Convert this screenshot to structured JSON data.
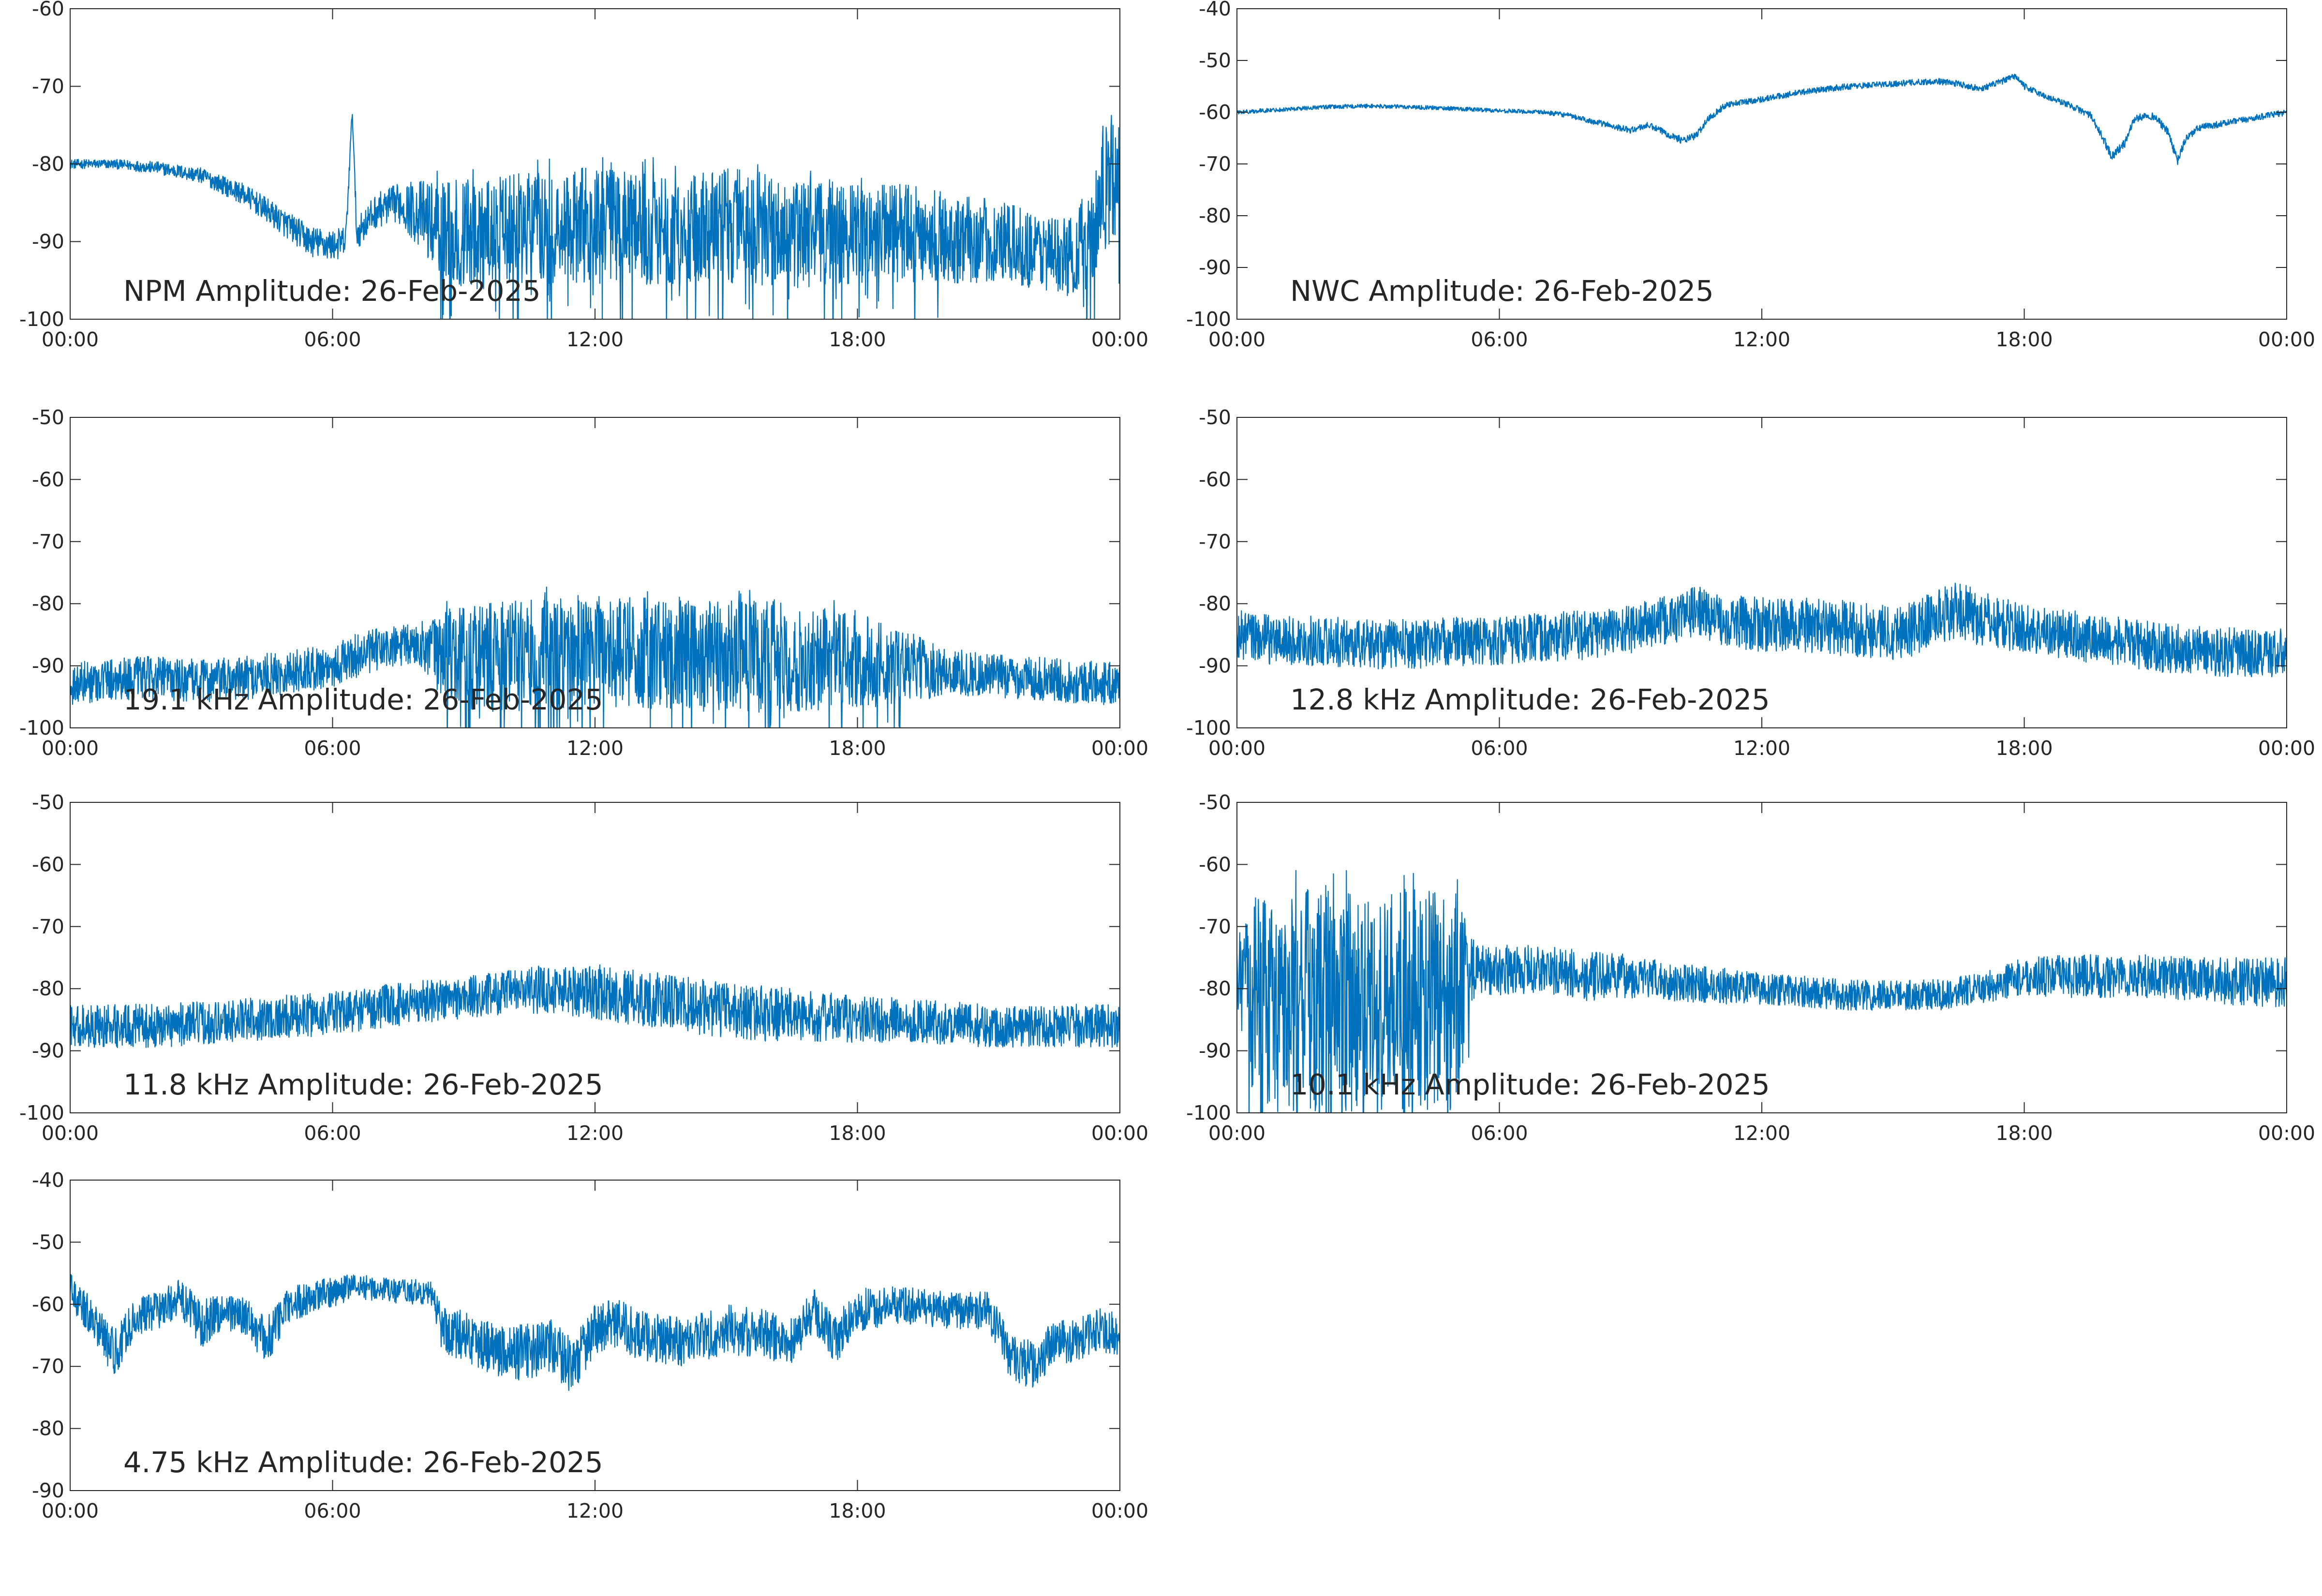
{
  "figure": {
    "background": "#ffffff",
    "line_color": "#0072bd",
    "axis_color": "#262626"
  },
  "chart_data": [
    {
      "type": "line",
      "title": "NPM Amplitude: 26-Feb-2025",
      "xlabel": "",
      "ylabel": "",
      "x_ticks": [
        "00:00",
        "06:00",
        "12:00",
        "18:00",
        "00:00"
      ],
      "x_range_hours": [
        0,
        24
      ],
      "ylim": [
        -100,
        -60
      ],
      "y_ticks": [
        -100,
        -90,
        -80,
        -70,
        -60
      ],
      "grid": false,
      "series": [
        {
          "x": [
            0,
            1,
            2,
            3,
            4,
            5,
            5.5,
            6,
            6.3,
            6.45,
            6.55,
            7,
            7.5,
            8,
            8.5,
            9,
            10,
            11,
            12,
            13,
            14,
            15,
            16,
            17,
            18,
            19,
            20,
            21,
            22,
            22.8,
            23.3,
            23.6,
            24
          ],
          "y": [
            -80,
            -80,
            -80.5,
            -81.5,
            -84,
            -88,
            -90,
            -90.5,
            -90,
            -73,
            -89,
            -86,
            -85,
            -86.5,
            -88.5,
            -89,
            -89,
            -88,
            -88,
            -88,
            -88,
            -88,
            -88.5,
            -89,
            -89,
            -89,
            -89.5,
            -90,
            -91,
            -92,
            -90,
            -84,
            -81
          ],
          "noise_band": [
            0.6,
            0.6,
            0.8,
            1.0,
            1.4,
            1.8,
            2.0,
            2.0,
            2.0,
            0.5,
            2.0,
            2.2,
            2.5,
            4.5,
            6.5,
            7.0,
            7.5,
            7.5,
            7.5,
            7.5,
            7.5,
            7.5,
            7.5,
            7.0,
            6.5,
            6.5,
            6.0,
            5.5,
            5.0,
            5.0,
            7.0,
            8.0,
            7.0
          ]
        }
      ]
    },
    {
      "type": "line",
      "title": "NWC Amplitude: 26-Feb-2025",
      "xlabel": "",
      "ylabel": "",
      "x_ticks": [
        "00:00",
        "06:00",
        "12:00",
        "18:00",
        "00:00"
      ],
      "x_range_hours": [
        0,
        24
      ],
      "ylim": [
        -100,
        -40
      ],
      "y_ticks": [
        -100,
        -90,
        -80,
        -70,
        -60,
        -50,
        -40
      ],
      "grid": false,
      "series": [
        {
          "x": [
            0,
            1,
            2,
            3,
            4,
            5,
            6,
            7,
            7.5,
            8,
            8.5,
            9,
            9.4,
            9.8,
            10.2,
            10.5,
            10.8,
            11.2,
            12,
            13,
            14,
            15,
            16,
            16.5,
            17,
            17.5,
            17.8,
            18,
            18.5,
            19,
            19.5,
            19.8,
            20,
            20.3,
            20.5,
            20.8,
            21,
            21.3,
            21.5,
            21.7,
            22,
            23,
            24
          ],
          "y": [
            -60,
            -59.5,
            -59,
            -58.8,
            -59,
            -59.3,
            -59.7,
            -60,
            -60.5,
            -61.5,
            -62.5,
            -63.5,
            -62.5,
            -64,
            -65.5,
            -64.5,
            -61,
            -58.5,
            -57.5,
            -56,
            -55,
            -54.5,
            -54,
            -54.5,
            -55.5,
            -54,
            -53,
            -55,
            -57,
            -58.5,
            -60.5,
            -65,
            -68.5,
            -66,
            -61.5,
            -60.5,
            -61,
            -64,
            -69.5,
            -65,
            -63,
            -61.5,
            -60
          ],
          "noise_band": [
            0.4,
            0.4,
            0.4,
            0.4,
            0.4,
            0.4,
            0.4,
            0.4,
            0.5,
            0.5,
            0.6,
            0.6,
            0.6,
            0.7,
            0.7,
            0.7,
            0.7,
            0.6,
            0.6,
            0.6,
            0.6,
            0.6,
            0.6,
            0.6,
            0.6,
            0.6,
            0.6,
            0.6,
            0.6,
            0.6,
            0.7,
            0.8,
            0.9,
            0.8,
            0.7,
            0.7,
            0.7,
            0.8,
            0.9,
            0.8,
            0.7,
            0.6,
            0.6
          ]
        }
      ]
    },
    {
      "type": "line",
      "title": "19.1 kHz Amplitude: 26-Feb-2025",
      "xlabel": "",
      "ylabel": "",
      "x_ticks": [
        "00:00",
        "06:00",
        "12:00",
        "18:00",
        "00:00"
      ],
      "x_range_hours": [
        0,
        24
      ],
      "ylim": [
        -100,
        -50
      ],
      "y_ticks": [
        -100,
        -90,
        -80,
        -70,
        -60,
        -50
      ],
      "grid": false,
      "series": [
        {
          "x": [
            0,
            1,
            2,
            3,
            4,
            5,
            6,
            6.5,
            7,
            7.5,
            8,
            8.5,
            9,
            10,
            11,
            12,
            13,
            14,
            15,
            16,
            17,
            18,
            19,
            20,
            21,
            22,
            23,
            24
          ],
          "y": [
            -93,
            -92,
            -92,
            -92.5,
            -92,
            -91,
            -90,
            -88.5,
            -87.5,
            -87,
            -86.5,
            -88,
            -89,
            -88.5,
            -88,
            -88,
            -88,
            -88.5,
            -88.5,
            -88.5,
            -89,
            -89.5,
            -90,
            -91,
            -91.5,
            -92,
            -92.5,
            -93
          ],
          "noise_band": [
            3.5,
            3.5,
            3.5,
            3.5,
            3.5,
            3.5,
            3.5,
            3.5,
            3.5,
            3.5,
            3.5,
            7,
            8.5,
            9,
            9,
            9,
            9,
            9,
            9,
            9,
            8.5,
            8,
            6,
            4,
            3.5,
            3.5,
            3.5,
            3.5
          ]
        }
      ]
    },
    {
      "type": "line",
      "title": "12.8 kHz Amplitude: 26-Feb-2025",
      "xlabel": "",
      "ylabel": "",
      "x_ticks": [
        "00:00",
        "06:00",
        "12:00",
        "18:00",
        "00:00"
      ],
      "x_range_hours": [
        0,
        24
      ],
      "ylim": [
        -100,
        -50
      ],
      "y_ticks": [
        -100,
        -90,
        -80,
        -70,
        -60,
        -50
      ],
      "grid": false,
      "series": [
        {
          "x": [
            0,
            1,
            2,
            3,
            4,
            5,
            6,
            7,
            8,
            9,
            10,
            10.5,
            11,
            12,
            13,
            14,
            15,
            15.5,
            16,
            16.5,
            17,
            18,
            19,
            20,
            21,
            22,
            23,
            24
          ],
          "y": [
            -85,
            -86,
            -86,
            -86.5,
            -86.5,
            -86,
            -86,
            -85.5,
            -85,
            -84,
            -82.5,
            -81,
            -82.5,
            -83.5,
            -83.5,
            -84,
            -84.5,
            -84,
            -82,
            -81,
            -82.5,
            -84,
            -85,
            -86,
            -87,
            -87.5,
            -88,
            -88
          ],
          "noise_band": [
            4,
            4,
            4,
            4,
            4,
            4,
            4,
            4,
            4,
            4,
            4,
            4,
            4,
            4.5,
            4.5,
            4.5,
            4.5,
            4.5,
            4.5,
            4.5,
            4.5,
            4,
            4,
            4,
            4,
            4,
            4,
            4
          ]
        }
      ]
    },
    {
      "type": "line",
      "title": "11.8 kHz Amplitude: 26-Feb-2025",
      "xlabel": "",
      "ylabel": "",
      "x_ticks": [
        "00:00",
        "06:00",
        "12:00",
        "18:00",
        "00:00"
      ],
      "x_range_hours": [
        0,
        24
      ],
      "ylim": [
        -100,
        -50
      ],
      "y_ticks": [
        -100,
        -90,
        -80,
        -70,
        -60,
        -50
      ],
      "grid": false,
      "series": [
        {
          "x": [
            0,
            1,
            2,
            3,
            4,
            5,
            6,
            7,
            8,
            9,
            10,
            11,
            12,
            13,
            14,
            15,
            16,
            17,
            18,
            19,
            20,
            21,
            22,
            23,
            24
          ],
          "y": [
            -86,
            -86,
            -86,
            -85.5,
            -85,
            -84.5,
            -84,
            -83,
            -82,
            -81.5,
            -80.5,
            -80,
            -80.5,
            -81.5,
            -82.5,
            -83.5,
            -84,
            -84.5,
            -85,
            -85,
            -85.5,
            -86,
            -86,
            -86,
            -86
          ],
          "noise_band": [
            3.5,
            3.5,
            3.5,
            3.5,
            3.5,
            3.5,
            3.5,
            3.5,
            3.5,
            3.5,
            3.5,
            4,
            4.5,
            4.5,
            4.5,
            4.5,
            4.5,
            4,
            4,
            3.5,
            3.5,
            3.5,
            3.5,
            3.5,
            3.5
          ]
        }
      ]
    },
    {
      "type": "line",
      "title": "10.1 kHz Amplitude: 26-Feb-2025",
      "xlabel": "",
      "ylabel": "",
      "x_ticks": [
        "00:00",
        "06:00",
        "12:00",
        "18:00",
        "00:00"
      ],
      "x_range_hours": [
        0,
        24
      ],
      "ylim": [
        -100,
        -50
      ],
      "y_ticks": [
        -100,
        -90,
        -80,
        -70,
        -60,
        -50
      ],
      "grid": false,
      "series": [
        {
          "x": [
            0,
            0.25,
            0.3,
            1,
            2,
            3,
            4,
            5,
            5.3,
            5.5,
            6,
            7,
            8,
            9,
            10,
            11,
            12,
            13,
            14,
            15,
            16,
            17,
            18,
            19,
            20,
            21,
            22,
            23,
            24
          ],
          "y": [
            -78,
            -76,
            -82,
            -82,
            -82,
            -82,
            -82,
            -82,
            -78,
            -77,
            -77,
            -77,
            -78,
            -78,
            -79,
            -79.5,
            -80,
            -80.5,
            -81,
            -81,
            -81,
            -80,
            -78,
            -78,
            -78,
            -78,
            -78.5,
            -79,
            -79
          ],
          "noise_band": [
            6,
            7,
            17,
            18,
            18,
            18,
            18,
            18,
            7,
            4,
            4,
            4,
            4,
            3.5,
            3,
            3,
            2.5,
            2.5,
            2.5,
            2.5,
            2.5,
            2.5,
            3,
            3.5,
            3.5,
            3.5,
            3.5,
            4,
            4
          ]
        }
      ]
    },
    {
      "type": "line",
      "title": "4.75 kHz Amplitude: 26-Feb-2025",
      "xlabel": "",
      "ylabel": "",
      "x_ticks": [
        "00:00",
        "06:00",
        "12:00",
        "18:00",
        "00:00"
      ],
      "x_range_hours": [
        0,
        24
      ],
      "ylim": [
        -90,
        -40
      ],
      "y_ticks": [
        -90,
        -80,
        -70,
        -60,
        -50,
        -40
      ],
      "grid": false,
      "series": [
        {
          "x": [
            0,
            0.5,
            1,
            1.5,
            2,
            2.5,
            3,
            3.5,
            4,
            4.5,
            5,
            5.5,
            6,
            6.5,
            7,
            7.5,
            8,
            8.3,
            8.5,
            9,
            10,
            11,
            11.5,
            12,
            12.5,
            13,
            14,
            15,
            16,
            16.5,
            17,
            17.5,
            18,
            19,
            20,
            21,
            21.5,
            22,
            22.5,
            23,
            23.5,
            24
          ],
          "y": [
            -58,
            -62,
            -68,
            -62,
            -61,
            -59,
            -63,
            -61,
            -62,
            -66,
            -60,
            -59,
            -58,
            -57,
            -57.5,
            -58,
            -58,
            -58.5,
            -64,
            -65,
            -68,
            -67,
            -70,
            -64,
            -63,
            -65,
            -66,
            -64,
            -65,
            -66,
            -61,
            -66,
            -61,
            -60,
            -61,
            -61,
            -68,
            -70,
            -66,
            -66,
            -64,
            -65
          ],
          "noise_band": [
            3,
            3,
            4,
            3,
            3,
            3,
            4,
            3,
            3,
            4,
            3,
            2.5,
            2.5,
            2,
            2,
            2,
            2,
            2,
            4,
            4,
            4.5,
            4.5,
            4.5,
            4,
            4,
            4,
            4,
            4,
            4,
            4,
            3.5,
            4,
            3.5,
            3,
            3,
            3,
            4,
            4,
            3.5,
            3.5,
            3.5,
            3.5
          ]
        }
      ]
    }
  ]
}
